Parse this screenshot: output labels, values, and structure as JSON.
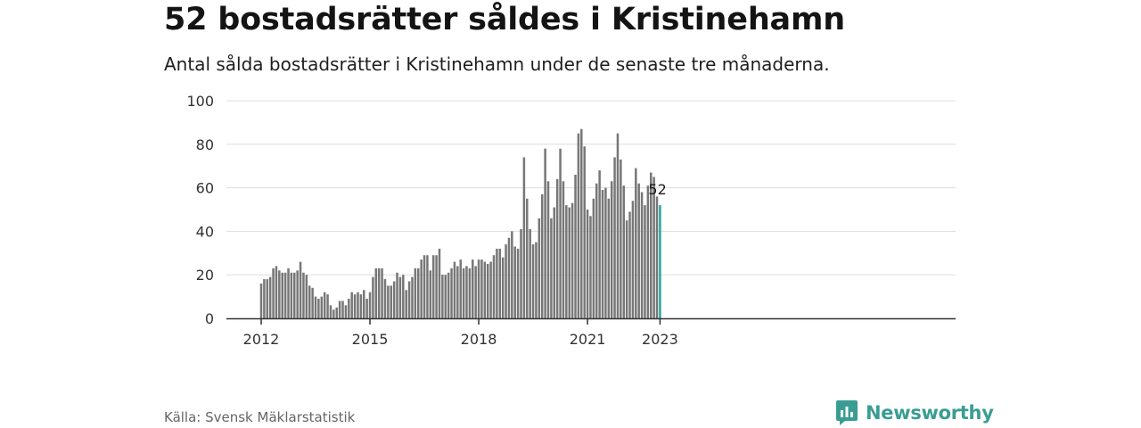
{
  "title": "52 bostadsrätter såldes i Kristinehamn",
  "subtitle": "Antal sålda bostadsrätter i Kristinehamn under de senaste tre månaderna.",
  "source": "Källa: Svensk Mäklarstatistik",
  "brand": {
    "name": "Newsworthy",
    "icon": "newsworthy-logo-icon"
  },
  "colors": {
    "bar": "#777777",
    "highlight": "#26a69a",
    "grid": "#dddddd",
    "axis": "#333333"
  },
  "chart_data": {
    "type": "bar",
    "title": "52 bostadsrätter såldes i Kristinehamn",
    "subtitle": "Antal sålda bostadsrätter i Kristinehamn under de senaste tre månaderna.",
    "xlabel": "",
    "ylabel": "",
    "ylim": [
      0,
      100
    ],
    "yticks": [
      0,
      20,
      40,
      60,
      80,
      100
    ],
    "xticks": [
      {
        "label": "2012",
        "date": "2012-01"
      },
      {
        "label": "2015",
        "date": "2015-01"
      },
      {
        "label": "2018",
        "date": "2018-01"
      },
      {
        "label": "2021",
        "date": "2021-01"
      },
      {
        "label": "2023",
        "date": "2023-01"
      }
    ],
    "grid": true,
    "annotation": {
      "date": "2023-01",
      "text": "52"
    },
    "series": [
      {
        "x": [
          "2012-01",
          "2012-02",
          "2012-03",
          "2012-04",
          "2012-05",
          "2012-06",
          "2012-07",
          "2012-08",
          "2012-09",
          "2012-10",
          "2012-11",
          "2012-12",
          "2013-01",
          "2013-02",
          "2013-03",
          "2013-04",
          "2013-05",
          "2013-06",
          "2013-07",
          "2013-08",
          "2013-09",
          "2013-10",
          "2013-11",
          "2013-12",
          "2014-01",
          "2014-02",
          "2014-03",
          "2014-04",
          "2014-05",
          "2014-06",
          "2014-07",
          "2014-08",
          "2014-09",
          "2014-10",
          "2014-11",
          "2014-12",
          "2015-01",
          "2015-02",
          "2015-03",
          "2015-04",
          "2015-05",
          "2015-06",
          "2015-07",
          "2015-08",
          "2015-09",
          "2015-10",
          "2015-11",
          "2015-12",
          "2016-01",
          "2016-02",
          "2016-03",
          "2016-04",
          "2016-05",
          "2016-06",
          "2016-07",
          "2016-08",
          "2016-09",
          "2016-10",
          "2016-11",
          "2016-12",
          "2017-01",
          "2017-02",
          "2017-03",
          "2017-04",
          "2017-05",
          "2017-06",
          "2017-07",
          "2017-08",
          "2017-09",
          "2017-10",
          "2017-11",
          "2017-12",
          "2018-01",
          "2018-02",
          "2018-03",
          "2018-04",
          "2018-05",
          "2018-06",
          "2018-07",
          "2018-08",
          "2018-09",
          "2018-10",
          "2018-11",
          "2018-12",
          "2019-01",
          "2019-02",
          "2019-03",
          "2019-04",
          "2019-05",
          "2019-06",
          "2019-07",
          "2019-08",
          "2019-09",
          "2019-10",
          "2019-11",
          "2019-12",
          "2020-01",
          "2020-02",
          "2020-03",
          "2020-04",
          "2020-05",
          "2020-06",
          "2020-07",
          "2020-08",
          "2020-09",
          "2020-10",
          "2020-11",
          "2020-12",
          "2021-01",
          "2021-02",
          "2021-03",
          "2021-04",
          "2021-05",
          "2021-06",
          "2021-07",
          "2021-08",
          "2021-09",
          "2021-10",
          "2021-11",
          "2021-12",
          "2022-01",
          "2022-02",
          "2022-03",
          "2022-04",
          "2022-05",
          "2022-06",
          "2022-07",
          "2022-08",
          "2022-09",
          "2022-10",
          "2022-11",
          "2022-12",
          "2023-01"
        ],
        "values": [
          16,
          18,
          18,
          19,
          23,
          24,
          22,
          21,
          21,
          23,
          21,
          21,
          22,
          26,
          21,
          20,
          15,
          14,
          10,
          9,
          10,
          12,
          11,
          6,
          4,
          5,
          8,
          8,
          6,
          9,
          12,
          11,
          12,
          11,
          13,
          9,
          12,
          19,
          23,
          23,
          23,
          18,
          15,
          15,
          17,
          21,
          19,
          20,
          13,
          17,
          19,
          23,
          23,
          27,
          29,
          29,
          22,
          29,
          29,
          32,
          20,
          20,
          21,
          23,
          26,
          24,
          27,
          23,
          24,
          23,
          27,
          24,
          27,
          27,
          26,
          25,
          26,
          29,
          32,
          32,
          28,
          34,
          37,
          40,
          33,
          32,
          41,
          74,
          55,
          41,
          34,
          35,
          46,
          57,
          78,
          63,
          46,
          51,
          64,
          78,
          63,
          52,
          51,
          53,
          66,
          85,
          87,
          79,
          50,
          47,
          55,
          62,
          68,
          59,
          60,
          55,
          63,
          74,
          85,
          73,
          61,
          45,
          49,
          54,
          69,
          62,
          58,
          52,
          61,
          67,
          65,
          56,
          52
        ]
      }
    ]
  }
}
